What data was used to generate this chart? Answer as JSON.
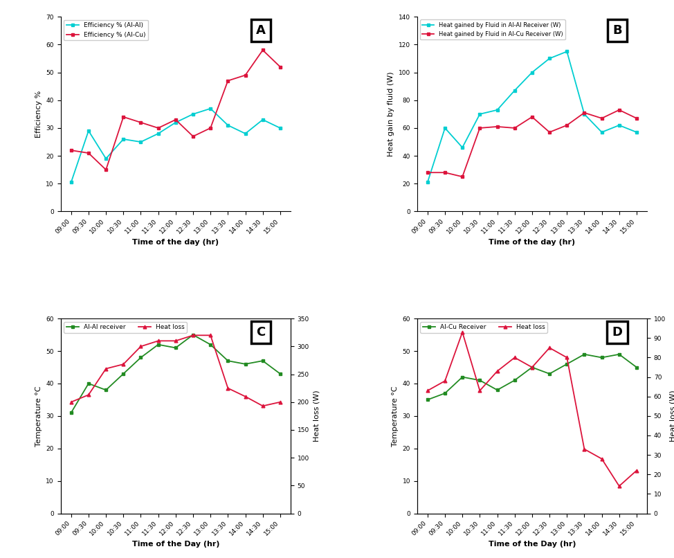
{
  "time_labels": [
    "09:00",
    "09:30",
    "10:00",
    "10:30",
    "11:00",
    "11:30",
    "12:00",
    "12:30",
    "13:00",
    "13:30",
    "14:00",
    "14:30",
    "15:00"
  ],
  "A": {
    "al_al": [
      10.5,
      29,
      19,
      26,
      25,
      28,
      32,
      35,
      37,
      31,
      28,
      33,
      30
    ],
    "al_cu": [
      22,
      21,
      15,
      34,
      32,
      30,
      33,
      27,
      30,
      47,
      49,
      58,
      52
    ],
    "ylabel": "Efficiency %",
    "xlabel": "Time of the day (hr)",
    "ylim": [
      0,
      70
    ],
    "legend1": "Efficiency % (Al-Al)",
    "legend2": "Efficiency % (Al-Cu)",
    "label": "A"
  },
  "B": {
    "al_al": [
      21,
      60,
      46,
      70,
      73,
      87,
      100,
      110,
      115,
      70,
      57,
      62,
      57
    ],
    "al_cu": [
      28,
      28,
      25,
      60,
      61,
      60,
      68,
      57,
      62,
      71,
      67,
      73,
      67
    ],
    "ylabel": "Heat gain by fluid (W)",
    "xlabel": "Time of the day (hr)",
    "ylim": [
      0,
      140
    ],
    "legend1": "Heat gained by Fluid in Al-Al Receiver (W)",
    "legend2": "Heat gained by Fluid in Al-Cu Receiver (W)",
    "label": "B"
  },
  "C": {
    "temp": [
      31,
      40,
      38,
      43,
      48,
      52,
      51,
      55,
      52,
      47,
      46,
      47,
      43
    ],
    "heat_loss": [
      200,
      213,
      260,
      268,
      300,
      310,
      310,
      320,
      320,
      225,
      210,
      193,
      200
    ],
    "ylabel_left": "Temperature °C",
    "ylabel_right": "Heat loss (W)",
    "xlabel": "Time of the Day (hr)",
    "ylim_left": [
      0,
      60
    ],
    "ylim_right": [
      0,
      350
    ],
    "yticks_right": [
      0,
      50,
      100,
      150,
      200,
      250,
      300,
      350
    ],
    "legend1": "Al-Al receiver",
    "legend2": "Heat loss",
    "label": "C"
  },
  "D": {
    "temp": [
      35,
      37,
      42,
      41,
      38,
      41,
      45,
      43,
      46,
      49,
      48,
      49,
      45
    ],
    "heat_loss": [
      63,
      68,
      93,
      63,
      73,
      80,
      75,
      85,
      80,
      33,
      28,
      14,
      22
    ],
    "ylabel_left": "Temperature °C",
    "ylabel_right": "Heat loss (W)",
    "xlabel": "Time of the Day (hr)",
    "ylim_left": [
      0,
      60
    ],
    "ylim_right": [
      0,
      100
    ],
    "yticks_right": [
      0,
      10,
      20,
      30,
      40,
      50,
      60,
      70,
      80,
      90,
      100
    ],
    "legend1": "Al-Cu Receiver",
    "legend2": "Heat loss",
    "label": "D"
  },
  "color_cyan": "#00CED1",
  "color_red": "#DC143C",
  "color_green": "#228B22",
  "color_salmon": "#FA8072"
}
